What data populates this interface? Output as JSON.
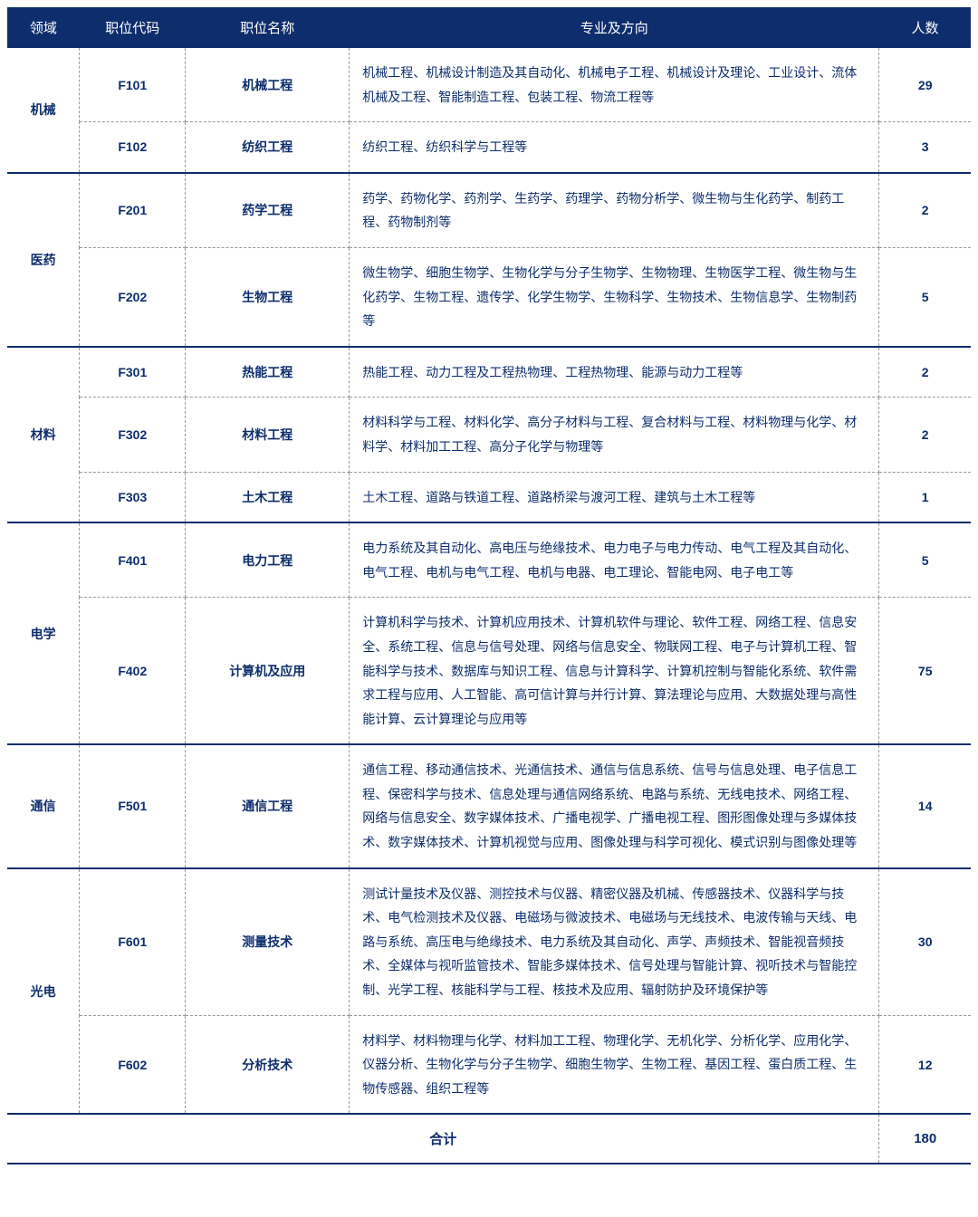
{
  "headers": {
    "field": "领域",
    "code": "职位代码",
    "name": "职位名称",
    "spec": "专业及方向",
    "count": "人数"
  },
  "groups": [
    {
      "field": "机械",
      "rows": [
        {
          "code": "F101",
          "name": "机械工程",
          "spec": "机械工程、机械设计制造及其自动化、机械电子工程、机械设计及理论、工业设计、流体机械及工程、智能制造工程、包装工程、物流工程等",
          "count": "29"
        },
        {
          "code": "F102",
          "name": "纺织工程",
          "spec": "纺织工程、纺织科学与工程等",
          "count": "3"
        }
      ]
    },
    {
      "field": "医药",
      "rows": [
        {
          "code": "F201",
          "name": "药学工程",
          "spec": "药学、药物化学、药剂学、生药学、药理学、药物分析学、微生物与生化药学、制药工程、药物制剂等",
          "count": "2"
        },
        {
          "code": "F202",
          "name": "生物工程",
          "spec": "微生物学、细胞生物学、生物化学与分子生物学、生物物理、生物医学工程、微生物与生化药学、生物工程、遗传学、化学生物学、生物科学、生物技术、生物信息学、生物制药等",
          "count": "5"
        }
      ]
    },
    {
      "field": "材料",
      "rows": [
        {
          "code": "F301",
          "name": "热能工程",
          "spec": "热能工程、动力工程及工程热物理、工程热物理、能源与动力工程等",
          "count": "2"
        },
        {
          "code": "F302",
          "name": "材料工程",
          "spec": "材料科学与工程、材料化学、高分子材料与工程、复合材料与工程、材料物理与化学、材料学、材料加工工程、高分子化学与物理等",
          "count": "2"
        },
        {
          "code": "F303",
          "name": "土木工程",
          "spec": "土木工程、道路与铁道工程、道路桥梁与渡河工程、建筑与土木工程等",
          "count": "1"
        }
      ]
    },
    {
      "field": "电学",
      "rows": [
        {
          "code": "F401",
          "name": "电力工程",
          "spec": "电力系统及其自动化、高电压与绝缘技术、电力电子与电力传动、电气工程及其自动化、电气工程、电机与电气工程、电机与电器、电工理论、智能电网、电子电工等",
          "count": "5"
        },
        {
          "code": "F402",
          "name": "计算机及应用",
          "spec": "计算机科学与技术、计算机应用技术、计算机软件与理论、软件工程、网络工程、信息安全、系统工程、信息与信号处理、网络与信息安全、物联网工程、电子与计算机工程、智能科学与技术、数据库与知识工程、信息与计算科学、计算机控制与智能化系统、软件需求工程与应用、人工智能、高可信计算与并行计算、算法理论与应用、大数据处理与高性能计算、云计算理论与应用等",
          "count": "75"
        }
      ]
    },
    {
      "field": "通信",
      "rows": [
        {
          "code": "F501",
          "name": "通信工程",
          "spec": "通信工程、移动通信技术、光通信技术、通信与信息系统、信号与信息处理、电子信息工程、保密科学与技术、信息处理与通信网络系统、电路与系统、无线电技术、网络工程、网络与信息安全、数字媒体技术、广播电视学、广播电视工程、图形图像处理与多媒体技术、数字媒体技术、计算机视觉与应用、图像处理与科学可视化、模式识别与图像处理等",
          "count": "14"
        }
      ]
    },
    {
      "field": "光电",
      "rows": [
        {
          "code": "F601",
          "name": "测量技术",
          "spec": "测试计量技术及仪器、测控技术与仪器、精密仪器及机械、传感器技术、仪器科学与技术、电气检测技术及仪器、电磁场与微波技术、电磁场与无线技术、电波传输与天线、电路与系统、高压电与绝缘技术、电力系统及其自动化、声学、声频技术、智能视音频技术、全媒体与视听监管技术、智能多媒体技术、信号处理与智能计算、视听技术与智能控制、光学工程、核能科学与工程、核技术及应用、辐射防护及环境保护等",
          "count": "30"
        },
        {
          "code": "F602",
          "name": "分析技术",
          "spec": "材料学、材料物理与化学、材料加工工程、物理化学、无机化学、分析化学、应用化学、仪器分析、生物化学与分子生物学、细胞生物学、生物工程、基因工程、蛋白质工程、生物传感器、组织工程等",
          "count": "12"
        }
      ]
    }
  ],
  "footer": {
    "label": "合计",
    "total": "180"
  },
  "style": {
    "header_bg": "#0e2d6c",
    "text_color": "#0e2d6c",
    "dash_color": "#999999",
    "solid_color": "#0e2d6c"
  }
}
